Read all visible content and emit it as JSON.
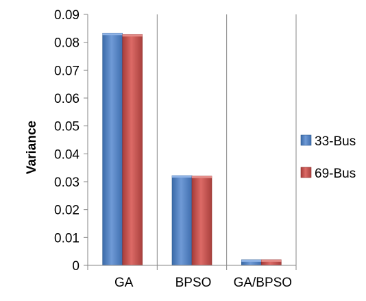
{
  "chart_data": {
    "type": "bar",
    "title": "",
    "xlabel": "",
    "ylabel": "Variance",
    "ylim": [
      0,
      0.09
    ],
    "yticks": [
      "0",
      "0.01",
      "0.02",
      "0.03",
      "0.04",
      "0.05",
      "0.06",
      "0.07",
      "0.08",
      "0.09"
    ],
    "categories": [
      "GA",
      "BPSO",
      "GA/BPSO"
    ],
    "series": [
      {
        "name": "33-Bus",
        "values": [
          0.0833,
          0.0322,
          0.002
        ]
      },
      {
        "name": "69-Bus",
        "values": [
          0.0828,
          0.032,
          0.002
        ]
      }
    ],
    "grid": "vertical category separators",
    "legend": "right",
    "colors": {
      "33-Bus": "#4f81bd",
      "69-Bus": "#c0504d",
      "grid": "#868686",
      "axis": "#868686"
    }
  }
}
